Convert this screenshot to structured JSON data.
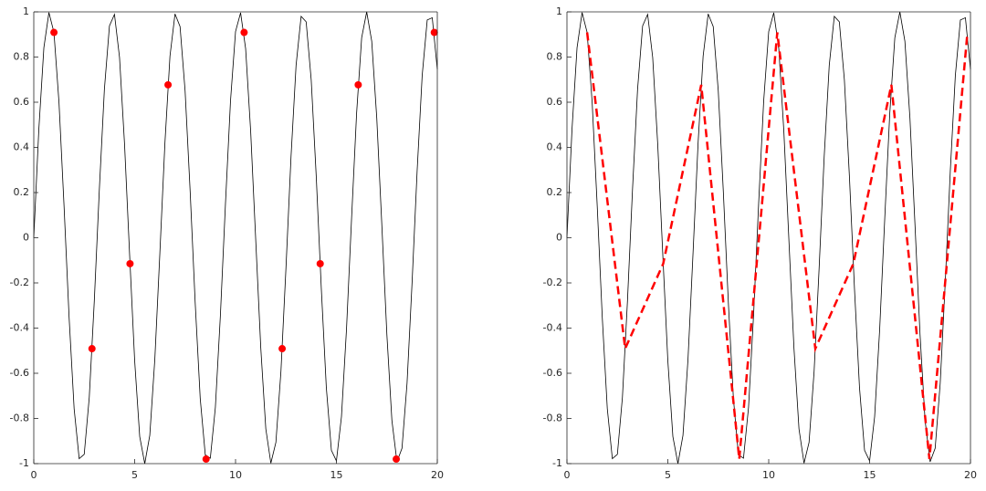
{
  "chart_data": [
    {
      "type": "line",
      "xlim": [
        0,
        20
      ],
      "ylim": [
        -1,
        1
      ],
      "xticks": [
        0,
        5,
        10,
        15,
        20
      ],
      "yticks": [
        -1,
        -0.8,
        -0.6,
        -0.4,
        -0.2,
        0,
        0.2,
        0.4,
        0.6,
        0.8,
        1
      ],
      "box": true,
      "series": [
        {
          "color": "#000000",
          "line_style": "solid",
          "marker": "none",
          "x": [
            0,
            0.25,
            0.5,
            0.75,
            1,
            1.25,
            1.5,
            1.75,
            2,
            2.25,
            2.5,
            2.75,
            3,
            3.25,
            3.5,
            3.75,
            4,
            4.25,
            4.5,
            4.75,
            5,
            5.25,
            5.5,
            5.75,
            6,
            6.25,
            6.5,
            6.75,
            7,
            7.25,
            7.5,
            7.75,
            8,
            8.25,
            8.5,
            8.75,
            9,
            9.25,
            9.5,
            9.75,
            10,
            10.25,
            10.5,
            10.75,
            11,
            11.25,
            11.5,
            11.75,
            12,
            12.25,
            12.5,
            12.75,
            13,
            13.25,
            13.5,
            13.75,
            14,
            14.25,
            14.5,
            14.75,
            15,
            15.25,
            15.5,
            15.75,
            16,
            16.25,
            16.5,
            16.75,
            17,
            17.25,
            17.5,
            17.75,
            18,
            18.25,
            18.5,
            18.75,
            19,
            19.25,
            19.5,
            19.75,
            20
          ],
          "values": [
            0,
            0.479,
            0.841,
            0.997,
            0.909,
            0.598,
            0.141,
            -0.351,
            -0.757,
            -0.978,
            -0.959,
            -0.706,
            -0.279,
            0.215,
            0.657,
            0.938,
            0.989,
            0.798,
            0.412,
            -0.075,
            -0.544,
            -0.88,
            -1,
            -0.875,
            -0.537,
            -0.066,
            0.42,
            0.804,
            0.991,
            0.935,
            0.65,
            0.206,
            -0.288,
            -0.712,
            -0.961,
            -0.976,
            -0.751,
            -0.342,
            0.15,
            0.605,
            0.913,
            0.996,
            0.837,
            0.471,
            -0.009,
            -0.487,
            -0.846,
            -0.998,
            -0.906,
            -0.591,
            -0.132,
            0.359,
            0.763,
            0.98,
            0.956,
            0.699,
            0.271,
            -0.224,
            -0.664,
            -0.941,
            -0.988,
            -0.792,
            -0.404,
            0.084,
            0.551,
            0.885,
            1,
            0.87,
            0.529,
            0.057,
            -0.428,
            -0.809,
            -0.992,
            -0.932,
            -0.644,
            -0.197,
            0.296,
            0.718,
            0.964,
            0.974,
            0.745
          ]
        },
        {
          "color": "#ff0000",
          "line_style": "none",
          "marker": "circle",
          "x": [
            1,
            2.885,
            4.77,
            6.655,
            8.54,
            10.425,
            12.31,
            14.195,
            16.08,
            17.965,
            19.85
          ],
          "values": [
            0.909,
            -0.491,
            -0.115,
            0.677,
            -0.98,
            0.909,
            -0.491,
            -0.115,
            0.677,
            -0.98,
            0.909
          ]
        }
      ]
    },
    {
      "type": "line",
      "xlim": [
        0,
        20
      ],
      "ylim": [
        -1,
        1
      ],
      "xticks": [
        0,
        5,
        10,
        15,
        20
      ],
      "yticks": [
        -1,
        -0.8,
        -0.6,
        -0.4,
        -0.2,
        0,
        0.2,
        0.4,
        0.6,
        0.8,
        1
      ],
      "box": true,
      "series": [
        {
          "color": "#000000",
          "line_style": "solid",
          "marker": "none",
          "x": [
            0,
            0.25,
            0.5,
            0.75,
            1,
            1.25,
            1.5,
            1.75,
            2,
            2.25,
            2.5,
            2.75,
            3,
            3.25,
            3.5,
            3.75,
            4,
            4.25,
            4.5,
            4.75,
            5,
            5.25,
            5.5,
            5.75,
            6,
            6.25,
            6.5,
            6.75,
            7,
            7.25,
            7.5,
            7.75,
            8,
            8.25,
            8.5,
            8.75,
            9,
            9.25,
            9.5,
            9.75,
            10,
            10.25,
            10.5,
            10.75,
            11,
            11.25,
            11.5,
            11.75,
            12,
            12.25,
            12.5,
            12.75,
            13,
            13.25,
            13.5,
            13.75,
            14,
            14.25,
            14.5,
            14.75,
            15,
            15.25,
            15.5,
            15.75,
            16,
            16.25,
            16.5,
            16.75,
            17,
            17.25,
            17.5,
            17.75,
            18,
            18.25,
            18.5,
            18.75,
            19,
            19.25,
            19.5,
            19.75,
            20
          ],
          "values": [
            0,
            0.479,
            0.841,
            0.997,
            0.909,
            0.598,
            0.141,
            -0.351,
            -0.757,
            -0.978,
            -0.959,
            -0.706,
            -0.279,
            0.215,
            0.657,
            0.938,
            0.989,
            0.798,
            0.412,
            -0.075,
            -0.544,
            -0.88,
            -1,
            -0.875,
            -0.537,
            -0.066,
            0.42,
            0.804,
            0.991,
            0.935,
            0.65,
            0.206,
            -0.288,
            -0.712,
            -0.961,
            -0.976,
            -0.751,
            -0.342,
            0.15,
            0.605,
            0.913,
            0.996,
            0.837,
            0.471,
            -0.009,
            -0.487,
            -0.846,
            -0.998,
            -0.906,
            -0.591,
            -0.132,
            0.359,
            0.763,
            0.98,
            0.956,
            0.699,
            0.271,
            -0.224,
            -0.664,
            -0.941,
            -0.988,
            -0.792,
            -0.404,
            0.084,
            0.551,
            0.885,
            1,
            0.87,
            0.529,
            0.057,
            -0.428,
            -0.809,
            -0.992,
            -0.932,
            -0.644,
            -0.197,
            0.296,
            0.718,
            0.964,
            0.974,
            0.745
          ]
        },
        {
          "color": "#ff0000",
          "line_style": "dashed",
          "marker": "none",
          "x": [
            1,
            2.885,
            4.77,
            6.655,
            8.54,
            10.425,
            12.31,
            14.195,
            16.08,
            17.965,
            19.85
          ],
          "values": [
            0.909,
            -0.491,
            -0.115,
            0.677,
            -0.98,
            0.909,
            -0.491,
            -0.115,
            0.677,
            -0.98,
            0.909
          ]
        }
      ]
    }
  ]
}
